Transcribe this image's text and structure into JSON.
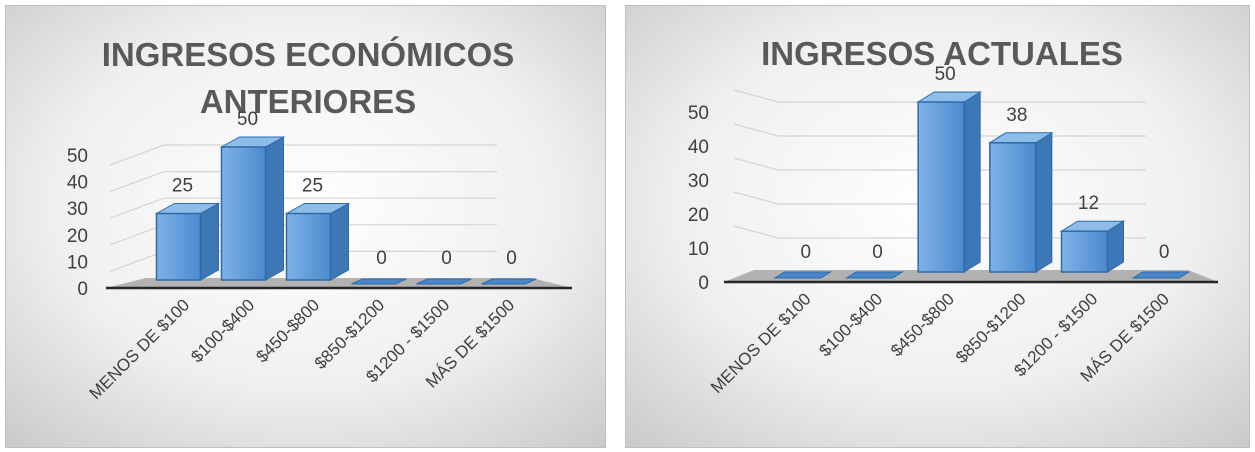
{
  "chart_data": [
    {
      "type": "bar",
      "title": "INGRESOS ECONÓMICOS ANTERIORES",
      "title_lines": [
        "INGRESOS ECONÓMICOS",
        "ANTERIORES"
      ],
      "categories": [
        "MENOS DE $100",
        "$100-$400",
        "$450-$800",
        "$850-$1200",
        "$1200 - $1500",
        "MÁS DE $1500"
      ],
      "values": [
        25,
        50,
        25,
        0,
        0,
        0
      ],
      "yticks": [
        0,
        10,
        20,
        30,
        40,
        50
      ],
      "ylim": [
        0,
        50
      ],
      "xlabel": "",
      "ylabel": "",
      "grid": true,
      "legend": "none",
      "bar_color": "#5b9bd5",
      "three_d": true
    },
    {
      "type": "bar",
      "title": "INGRESOS ACTUALES",
      "title_lines": [
        "INGRESOS ACTUALES"
      ],
      "categories": [
        "MENOS DE $100",
        "$100-$400",
        "$450-$800",
        "$850-$1200",
        "$1200 - $1500",
        "MÁS DE $1500"
      ],
      "values": [
        0,
        0,
        50,
        38,
        12,
        0
      ],
      "yticks": [
        0,
        10,
        20,
        30,
        40,
        50
      ],
      "ylim": [
        0,
        50
      ],
      "xlabel": "",
      "ylabel": "",
      "grid": true,
      "legend": "none",
      "bar_color": "#5b9bd5",
      "three_d": true
    }
  ]
}
